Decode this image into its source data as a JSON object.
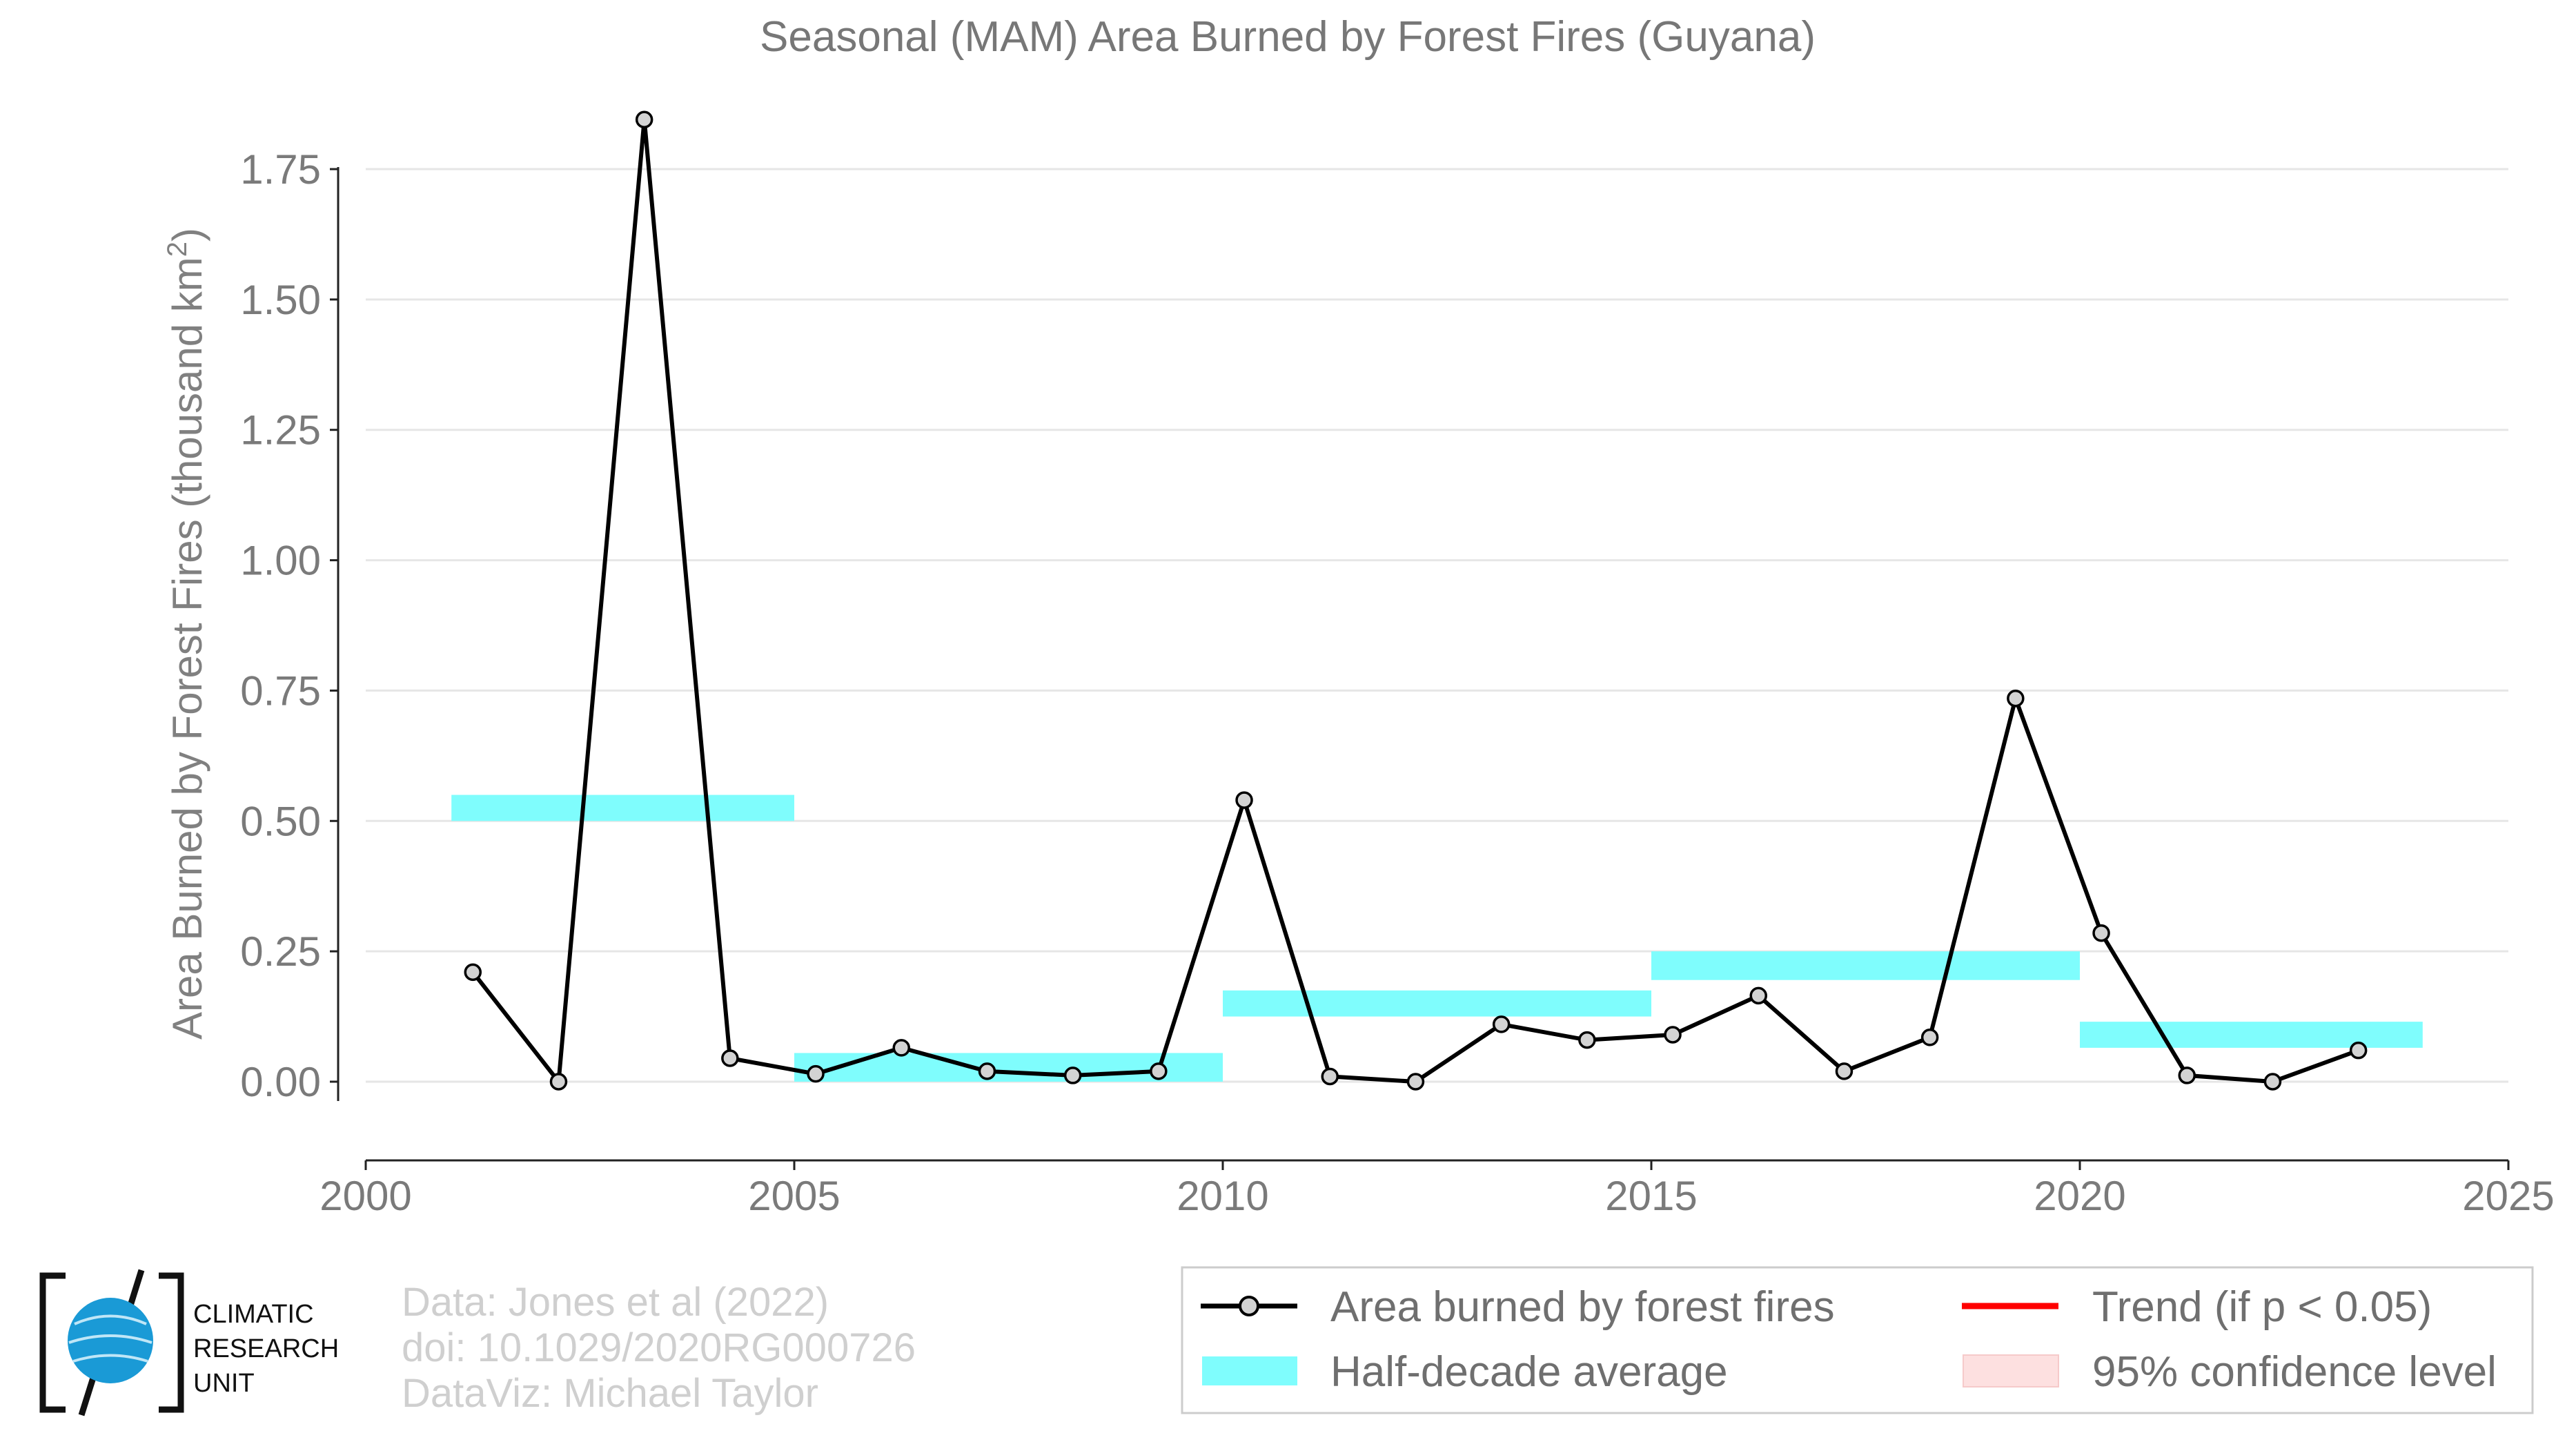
{
  "chart_data": {
    "type": "line",
    "title": "Seasonal (MAM) Area Burned by Forest Fires (Guyana)",
    "ylabel": "Area Burned by Forest Fires (thousand km",
    "ylabel_sup": "2",
    "ylabel_close": ")",
    "xlabel": "",
    "xlim": [
      2000,
      2025
    ],
    "ylim": [
      -0.075,
      1.9
    ],
    "x_ticks": [
      2000,
      2005,
      2010,
      2015,
      2020,
      2025
    ],
    "x_tick_labels": [
      "2000",
      "2005",
      "2010",
      "2015",
      "2020",
      "2025"
    ],
    "y_ticks": [
      0.0,
      0.25,
      0.5,
      0.75,
      1.0,
      1.25,
      1.5,
      1.75
    ],
    "y_tick_labels": [
      "0.00",
      "0.25",
      "0.50",
      "0.75",
      "1.00",
      "1.25",
      "1.50",
      "1.75"
    ],
    "grid": "horizontal",
    "series": [
      {
        "name": "Area burned by forest fires",
        "color": "#000000",
        "marker_fill": "#d3d3d3",
        "x": [
          2001.25,
          2002.25,
          2003.25,
          2004.25,
          2005.25,
          2006.25,
          2007.25,
          2008.25,
          2009.25,
          2010.25,
          2011.25,
          2012.25,
          2013.25,
          2014.25,
          2015.25,
          2016.25,
          2017.25,
          2018.25,
          2019.25,
          2020.25,
          2021.25,
          2022.25,
          2023.25
        ],
        "y": [
          0.21,
          0.0,
          1.845,
          0.045,
          0.015,
          0.065,
          0.02,
          0.012,
          0.02,
          0.54,
          0.01,
          0.0,
          0.11,
          0.08,
          0.09,
          0.165,
          0.02,
          0.085,
          0.735,
          0.285,
          0.012,
          0.0,
          0.06
        ]
      }
    ],
    "half_decade_average": {
      "name": "Half-decade average",
      "color": "#7ffdfd",
      "segments": [
        {
          "x0": 2001,
          "x1": 2005,
          "y0": 0.5,
          "y1": 0.55
        },
        {
          "x0": 2005,
          "x1": 2010,
          "y0": 0.0,
          "y1": 0.055
        },
        {
          "x0": 2010,
          "x1": 2015,
          "y0": 0.125,
          "y1": 0.175
        },
        {
          "x0": 2015,
          "x1": 2020,
          "y0": 0.195,
          "y1": 0.25
        },
        {
          "x0": 2020,
          "x1": 2024,
          "y0": 0.065,
          "y1": 0.115
        }
      ]
    },
    "legend": {
      "placement": "bottom-right",
      "entries": [
        {
          "label": "Area burned by forest fires",
          "kind": "line-marker",
          "color": "#000000"
        },
        {
          "label": "Trend (if p < 0.05)",
          "kind": "line",
          "color": "#ff0000"
        },
        {
          "label": "Half-decade average",
          "kind": "patch",
          "color": "#7ffdfd"
        },
        {
          "label": "95% confidence level",
          "kind": "patch",
          "color": "#fde0e0"
        }
      ]
    }
  },
  "credits": {
    "line1": "Data: Jones et al (2022)",
    "line2": "doi: 10.1029/2020RG000726",
    "line3": "DataViz: Michael Taylor"
  },
  "logo": {
    "line1": "CLIMATIC",
    "line2": "RESEARCH",
    "line3": "UNIT",
    "globe_color": "#1a9ad6"
  }
}
